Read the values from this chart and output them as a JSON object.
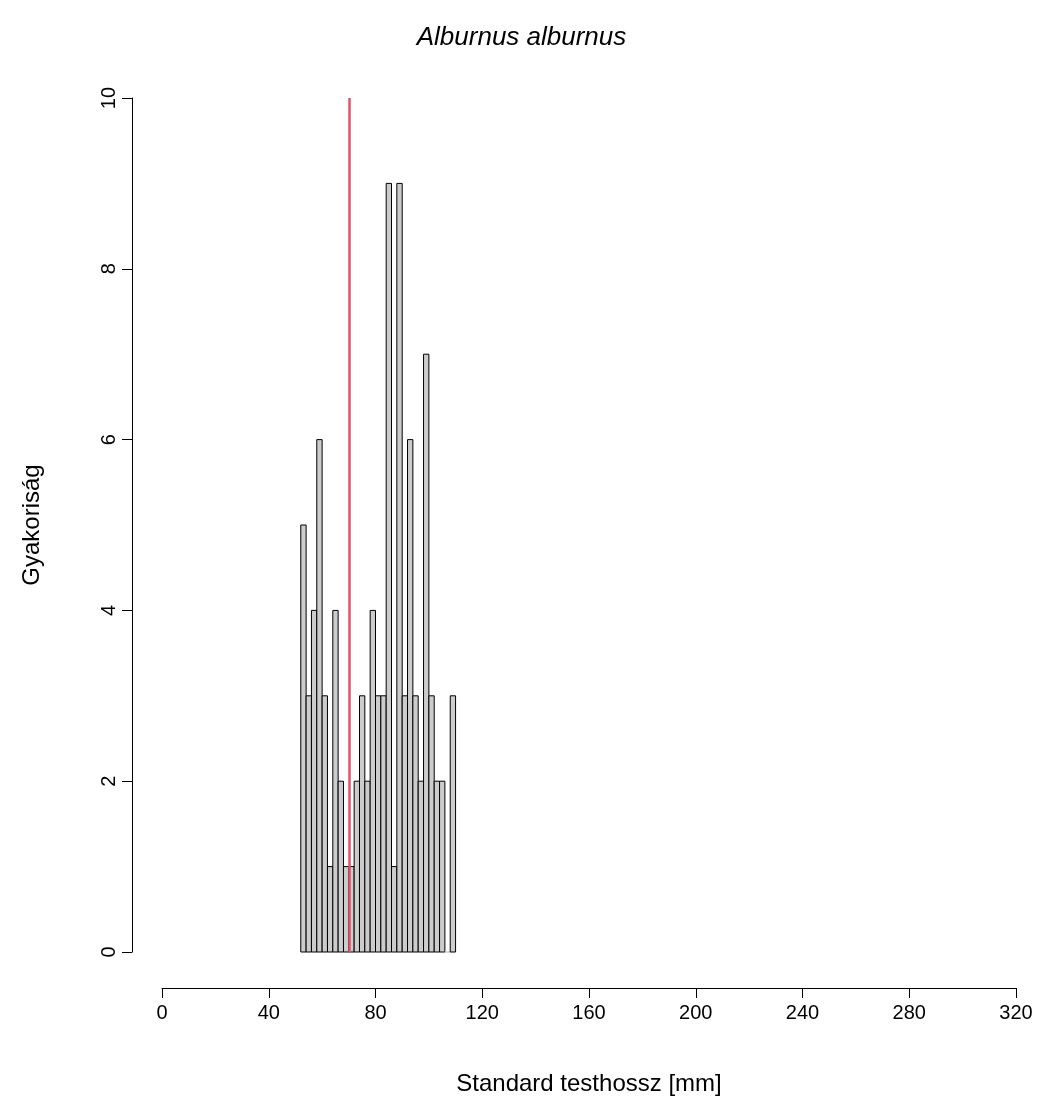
{
  "chart_data": {
    "type": "histogram",
    "title": "Alburnus alburnus",
    "xlabel": "Standard testhossz [mm]",
    "ylabel": "Gyakoriság",
    "bins": [
      52,
      54,
      56,
      58,
      60,
      62,
      64,
      66,
      68,
      70,
      72,
      74,
      76,
      78,
      80,
      82,
      84,
      86,
      88,
      90,
      92,
      94,
      96,
      98,
      100,
      102,
      104,
      106,
      108,
      110
    ],
    "values": [
      5,
      3,
      4,
      6,
      3,
      1,
      4,
      2,
      1,
      1,
      2,
      3,
      2,
      4,
      3,
      3,
      9,
      1,
      9,
      3,
      6,
      3,
      2,
      7,
      3,
      2,
      2,
      0,
      3
    ],
    "color": "#cccccc",
    "xlim": [
      0,
      320
    ],
    "xticks": [
      0,
      40,
      80,
      120,
      160,
      200,
      240,
      280,
      320
    ],
    "ylim": [
      0,
      10
    ],
    "yticks": [
      0,
      2,
      4,
      6,
      8,
      10
    ],
    "ref_lines": [
      {
        "axis": "x",
        "value": 70,
        "color": "#df536b"
      }
    ],
    "grid": false
  }
}
